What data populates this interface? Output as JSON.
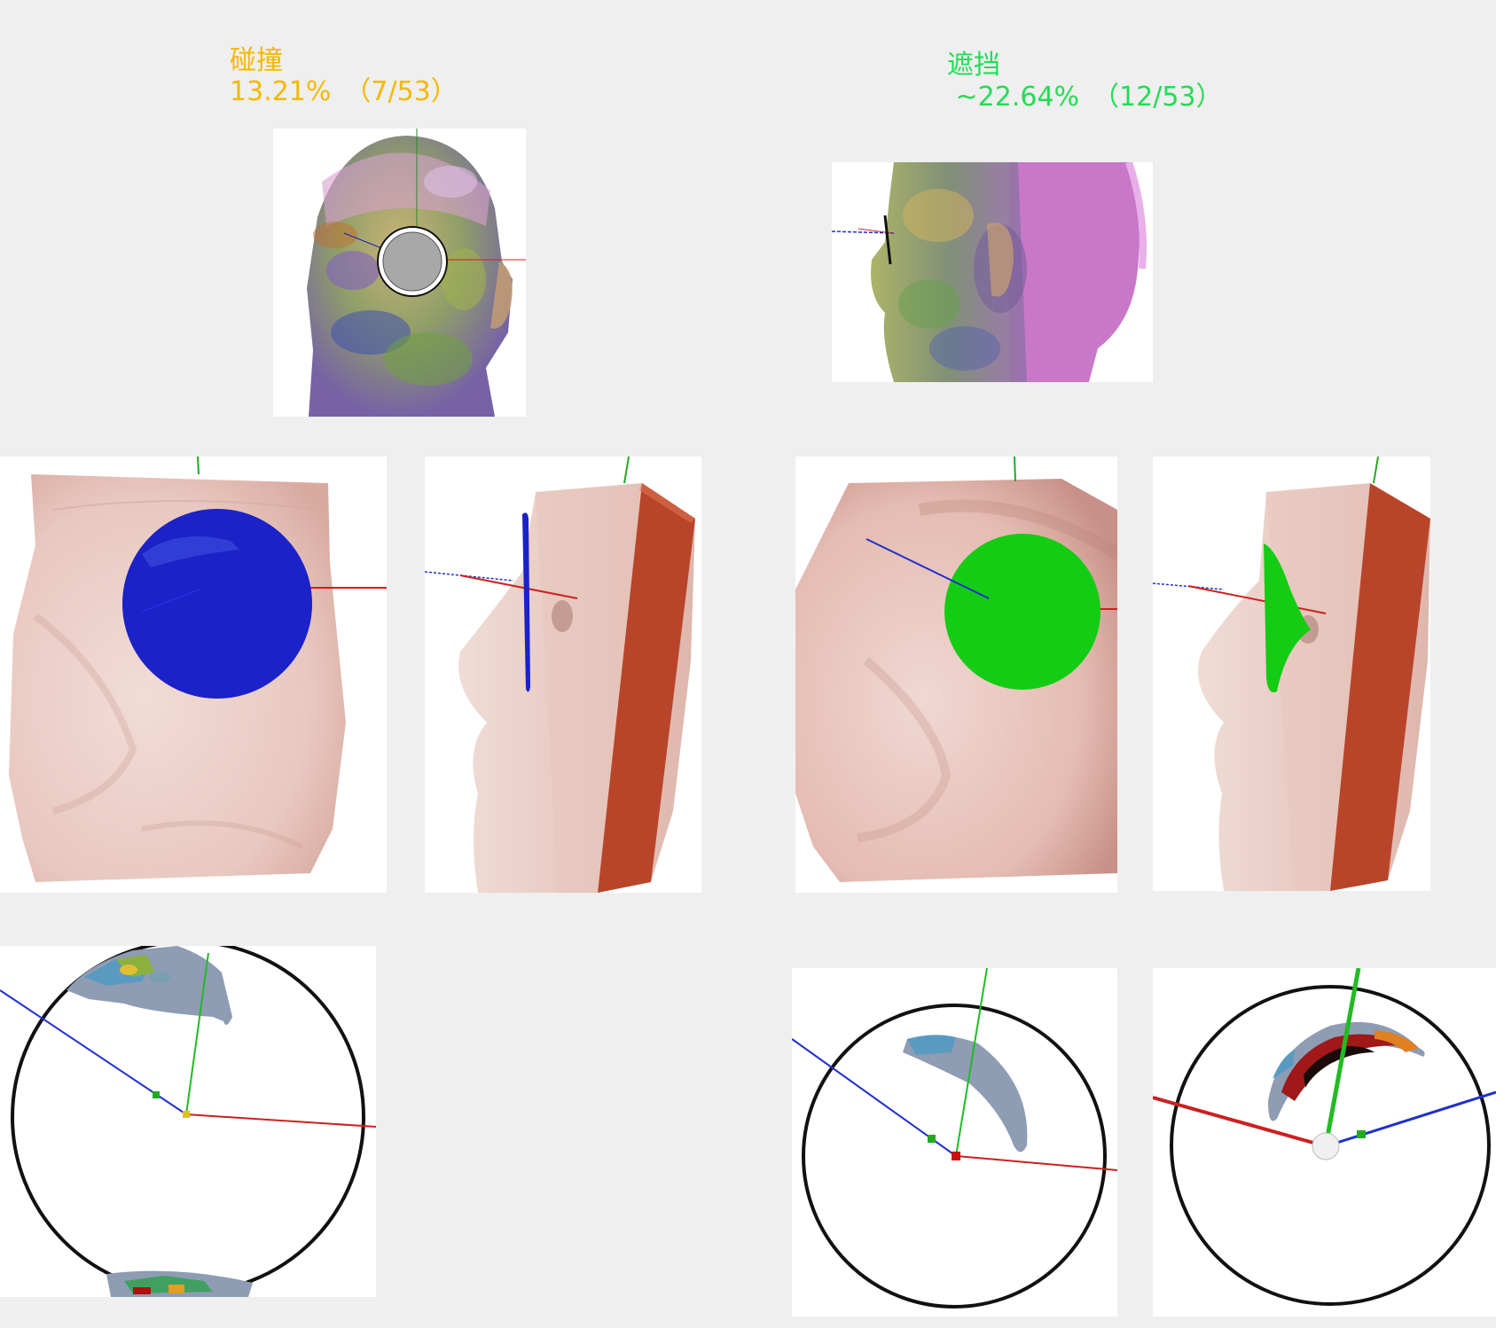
{
  "collision": {
    "title": "碰撞",
    "value": "13.21%　（7/53）",
    "color": "#f5b800",
    "marker_color": "#1b22c8"
  },
  "occlusion": {
    "title": "遮挡",
    "value": " ~22.64%　（12/53）",
    "color": "#22dd55",
    "marker_color": "#14cc14"
  }
}
